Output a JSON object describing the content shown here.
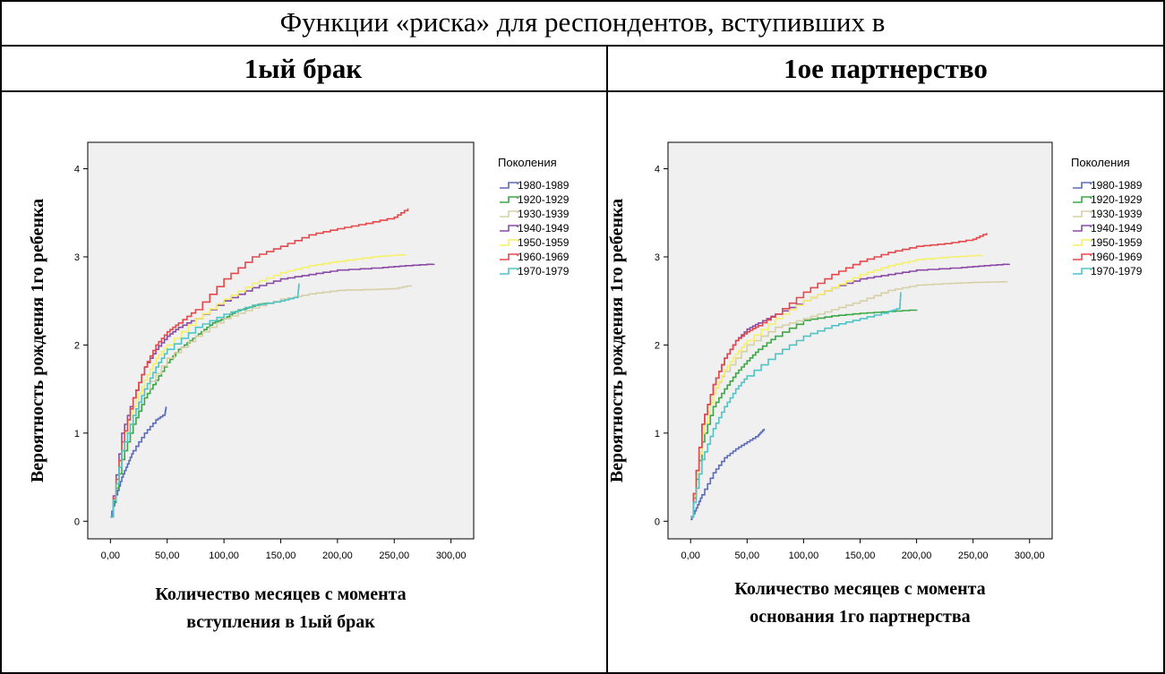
{
  "header": {
    "title": "Функции «риска» для респондентов, вступивших в",
    "col_left": "1ый брак",
    "col_right": "1ое партнерство"
  },
  "colors": {
    "1980-1989": "#5b6bb8",
    "1920-1929": "#3aa845",
    "1930-1939": "#d6d0a8",
    "1940-1949": "#8a4aa6",
    "1950-1959": "#f5ef6a",
    "1960-1969": "#e5484a",
    "1970-1979": "#4fc4c6",
    "plot_bg": "#f0f0f0"
  },
  "chart_data": [
    {
      "type": "line",
      "xlabel": "Количество месяцев с момента вступления в 1ый брак",
      "xlabel_lines": [
        "Количество месяцев с момента",
        "вступления в 1ый брак"
      ],
      "ylabel": "Вероятность рождения 1го ребенка",
      "x_ticks": [
        "0,00",
        "50,00",
        "100,00",
        "150,00",
        "200,00",
        "250,00",
        "300,00"
      ],
      "y_ticks": [
        "0",
        "1",
        "2",
        "3",
        "4"
      ],
      "xlim": [
        -20,
        320
      ],
      "ylim": [
        -0.2,
        4.3
      ],
      "grid": false,
      "legend_title": "Поколения",
      "legend_position": "right",
      "series": [
        {
          "name": "1980-1989",
          "x": [
            0,
            5,
            10,
            15,
            20,
            30,
            40,
            48,
            49
          ],
          "y": [
            0.05,
            0.3,
            0.5,
            0.65,
            0.8,
            1.0,
            1.15,
            1.22,
            1.3
          ]
        },
        {
          "name": "1920-1929",
          "x": [
            0,
            10,
            20,
            30,
            40,
            50,
            60,
            70,
            80,
            90,
            100,
            110,
            120,
            130,
            140
          ],
          "y": [
            0.05,
            0.7,
            1.1,
            1.4,
            1.6,
            1.8,
            1.95,
            2.05,
            2.15,
            2.25,
            2.3,
            2.38,
            2.42,
            2.46,
            2.48
          ]
        },
        {
          "name": "1930-1939",
          "x": [
            0,
            10,
            20,
            30,
            50,
            75,
            100,
            125,
            150,
            175,
            200,
            230,
            250,
            265
          ],
          "y": [
            0.05,
            0.8,
            1.2,
            1.5,
            1.85,
            2.1,
            2.3,
            2.42,
            2.52,
            2.58,
            2.62,
            2.63,
            2.64,
            2.68
          ]
        },
        {
          "name": "1940-1949",
          "x": [
            0,
            10,
            20,
            30,
            40,
            50,
            60,
            75,
            100,
            125,
            150,
            175,
            200,
            240,
            260,
            285
          ],
          "y": [
            0.05,
            1.0,
            1.4,
            1.75,
            1.95,
            2.1,
            2.2,
            2.3,
            2.5,
            2.65,
            2.75,
            2.8,
            2.85,
            2.88,
            2.9,
            2.92
          ]
        },
        {
          "name": "1950-1959",
          "x": [
            0,
            10,
            20,
            30,
            40,
            50,
            75,
            100,
            125,
            150,
            175,
            200,
            230,
            260
          ],
          "y": [
            0.05,
            0.9,
            1.3,
            1.6,
            1.85,
            2.0,
            2.3,
            2.52,
            2.7,
            2.82,
            2.9,
            2.95,
            3.0,
            3.03
          ]
        },
        {
          "name": "1960-1969",
          "x": [
            0,
            10,
            20,
            30,
            40,
            50,
            60,
            75,
            100,
            125,
            150,
            175,
            200,
            225,
            250,
            262
          ],
          "y": [
            0.05,
            0.9,
            1.4,
            1.75,
            2.0,
            2.15,
            2.25,
            2.4,
            2.75,
            3.0,
            3.12,
            3.25,
            3.32,
            3.38,
            3.45,
            3.55
          ]
        },
        {
          "name": "1970-1979",
          "x": [
            0,
            10,
            20,
            30,
            40,
            50,
            75,
            100,
            125,
            150,
            165,
            166
          ],
          "y": [
            0.05,
            0.8,
            1.2,
            1.5,
            1.75,
            1.95,
            2.2,
            2.35,
            2.45,
            2.5,
            2.55,
            2.7
          ]
        }
      ]
    },
    {
      "type": "line",
      "xlabel": "Количество месяцев с момента основания 1го партнерства",
      "xlabel_lines": [
        "Количество месяцев с момента",
        "основания 1го партнерства"
      ],
      "ylabel": "Вероятность рождения 1го ребенка",
      "x_ticks": [
        "0,00",
        "50,00",
        "100,00",
        "150,00",
        "200,00",
        "250,00",
        "300,00"
      ],
      "y_ticks": [
        "0",
        "1",
        "2",
        "3",
        "4"
      ],
      "xlim": [
        -20,
        320
      ],
      "ylim": [
        -0.2,
        4.3
      ],
      "grid": false,
      "legend_title": "Поколения",
      "legend_position": "right",
      "series": [
        {
          "name": "1980-1989",
          "x": [
            0,
            5,
            10,
            20,
            30,
            40,
            50,
            60,
            65
          ],
          "y": [
            0.02,
            0.15,
            0.3,
            0.55,
            0.72,
            0.82,
            0.9,
            0.98,
            1.05
          ]
        },
        {
          "name": "1920-1929",
          "x": [
            0,
            10,
            20,
            30,
            40,
            50,
            60,
            75,
            100,
            125,
            150,
            175,
            200
          ],
          "y": [
            0.05,
            0.9,
            1.3,
            1.5,
            1.68,
            1.82,
            1.95,
            2.1,
            2.28,
            2.33,
            2.36,
            2.38,
            2.4
          ]
        },
        {
          "name": "1930-1939",
          "x": [
            0,
            10,
            20,
            30,
            50,
            75,
            100,
            125,
            150,
            175,
            200,
            230,
            250,
            280
          ],
          "y": [
            0.05,
            1.0,
            1.45,
            1.7,
            2.0,
            2.2,
            2.3,
            2.4,
            2.5,
            2.62,
            2.68,
            2.7,
            2.71,
            2.72
          ]
        },
        {
          "name": "1940-1949",
          "x": [
            0,
            10,
            20,
            30,
            40,
            50,
            60,
            75,
            100,
            125,
            150,
            175,
            200,
            240,
            260,
            282
          ],
          "y": [
            0.05,
            1.1,
            1.55,
            1.85,
            2.05,
            2.18,
            2.25,
            2.35,
            2.5,
            2.65,
            2.75,
            2.8,
            2.85,
            2.88,
            2.9,
            2.92
          ]
        },
        {
          "name": "1950-1959",
          "x": [
            0,
            10,
            20,
            30,
            40,
            50,
            75,
            100,
            125,
            150,
            175,
            200,
            230,
            258
          ],
          "y": [
            0.05,
            1.0,
            1.45,
            1.72,
            1.9,
            2.05,
            2.3,
            2.5,
            2.65,
            2.8,
            2.9,
            2.97,
            3.0,
            3.02
          ]
        },
        {
          "name": "1960-1969",
          "x": [
            0,
            10,
            20,
            30,
            40,
            50,
            60,
            75,
            100,
            125,
            150,
            175,
            200,
            225,
            250,
            262
          ],
          "y": [
            0.05,
            1.1,
            1.55,
            1.85,
            2.05,
            2.15,
            2.22,
            2.35,
            2.6,
            2.8,
            2.95,
            3.05,
            3.12,
            3.15,
            3.2,
            3.27
          ]
        },
        {
          "name": "1970-1979",
          "x": [
            0,
            10,
            20,
            30,
            40,
            50,
            75,
            100,
            125,
            150,
            175,
            185,
            186
          ],
          "y": [
            0.05,
            0.7,
            1.05,
            1.3,
            1.5,
            1.65,
            1.9,
            2.1,
            2.22,
            2.3,
            2.38,
            2.42,
            2.6
          ]
        }
      ]
    }
  ]
}
